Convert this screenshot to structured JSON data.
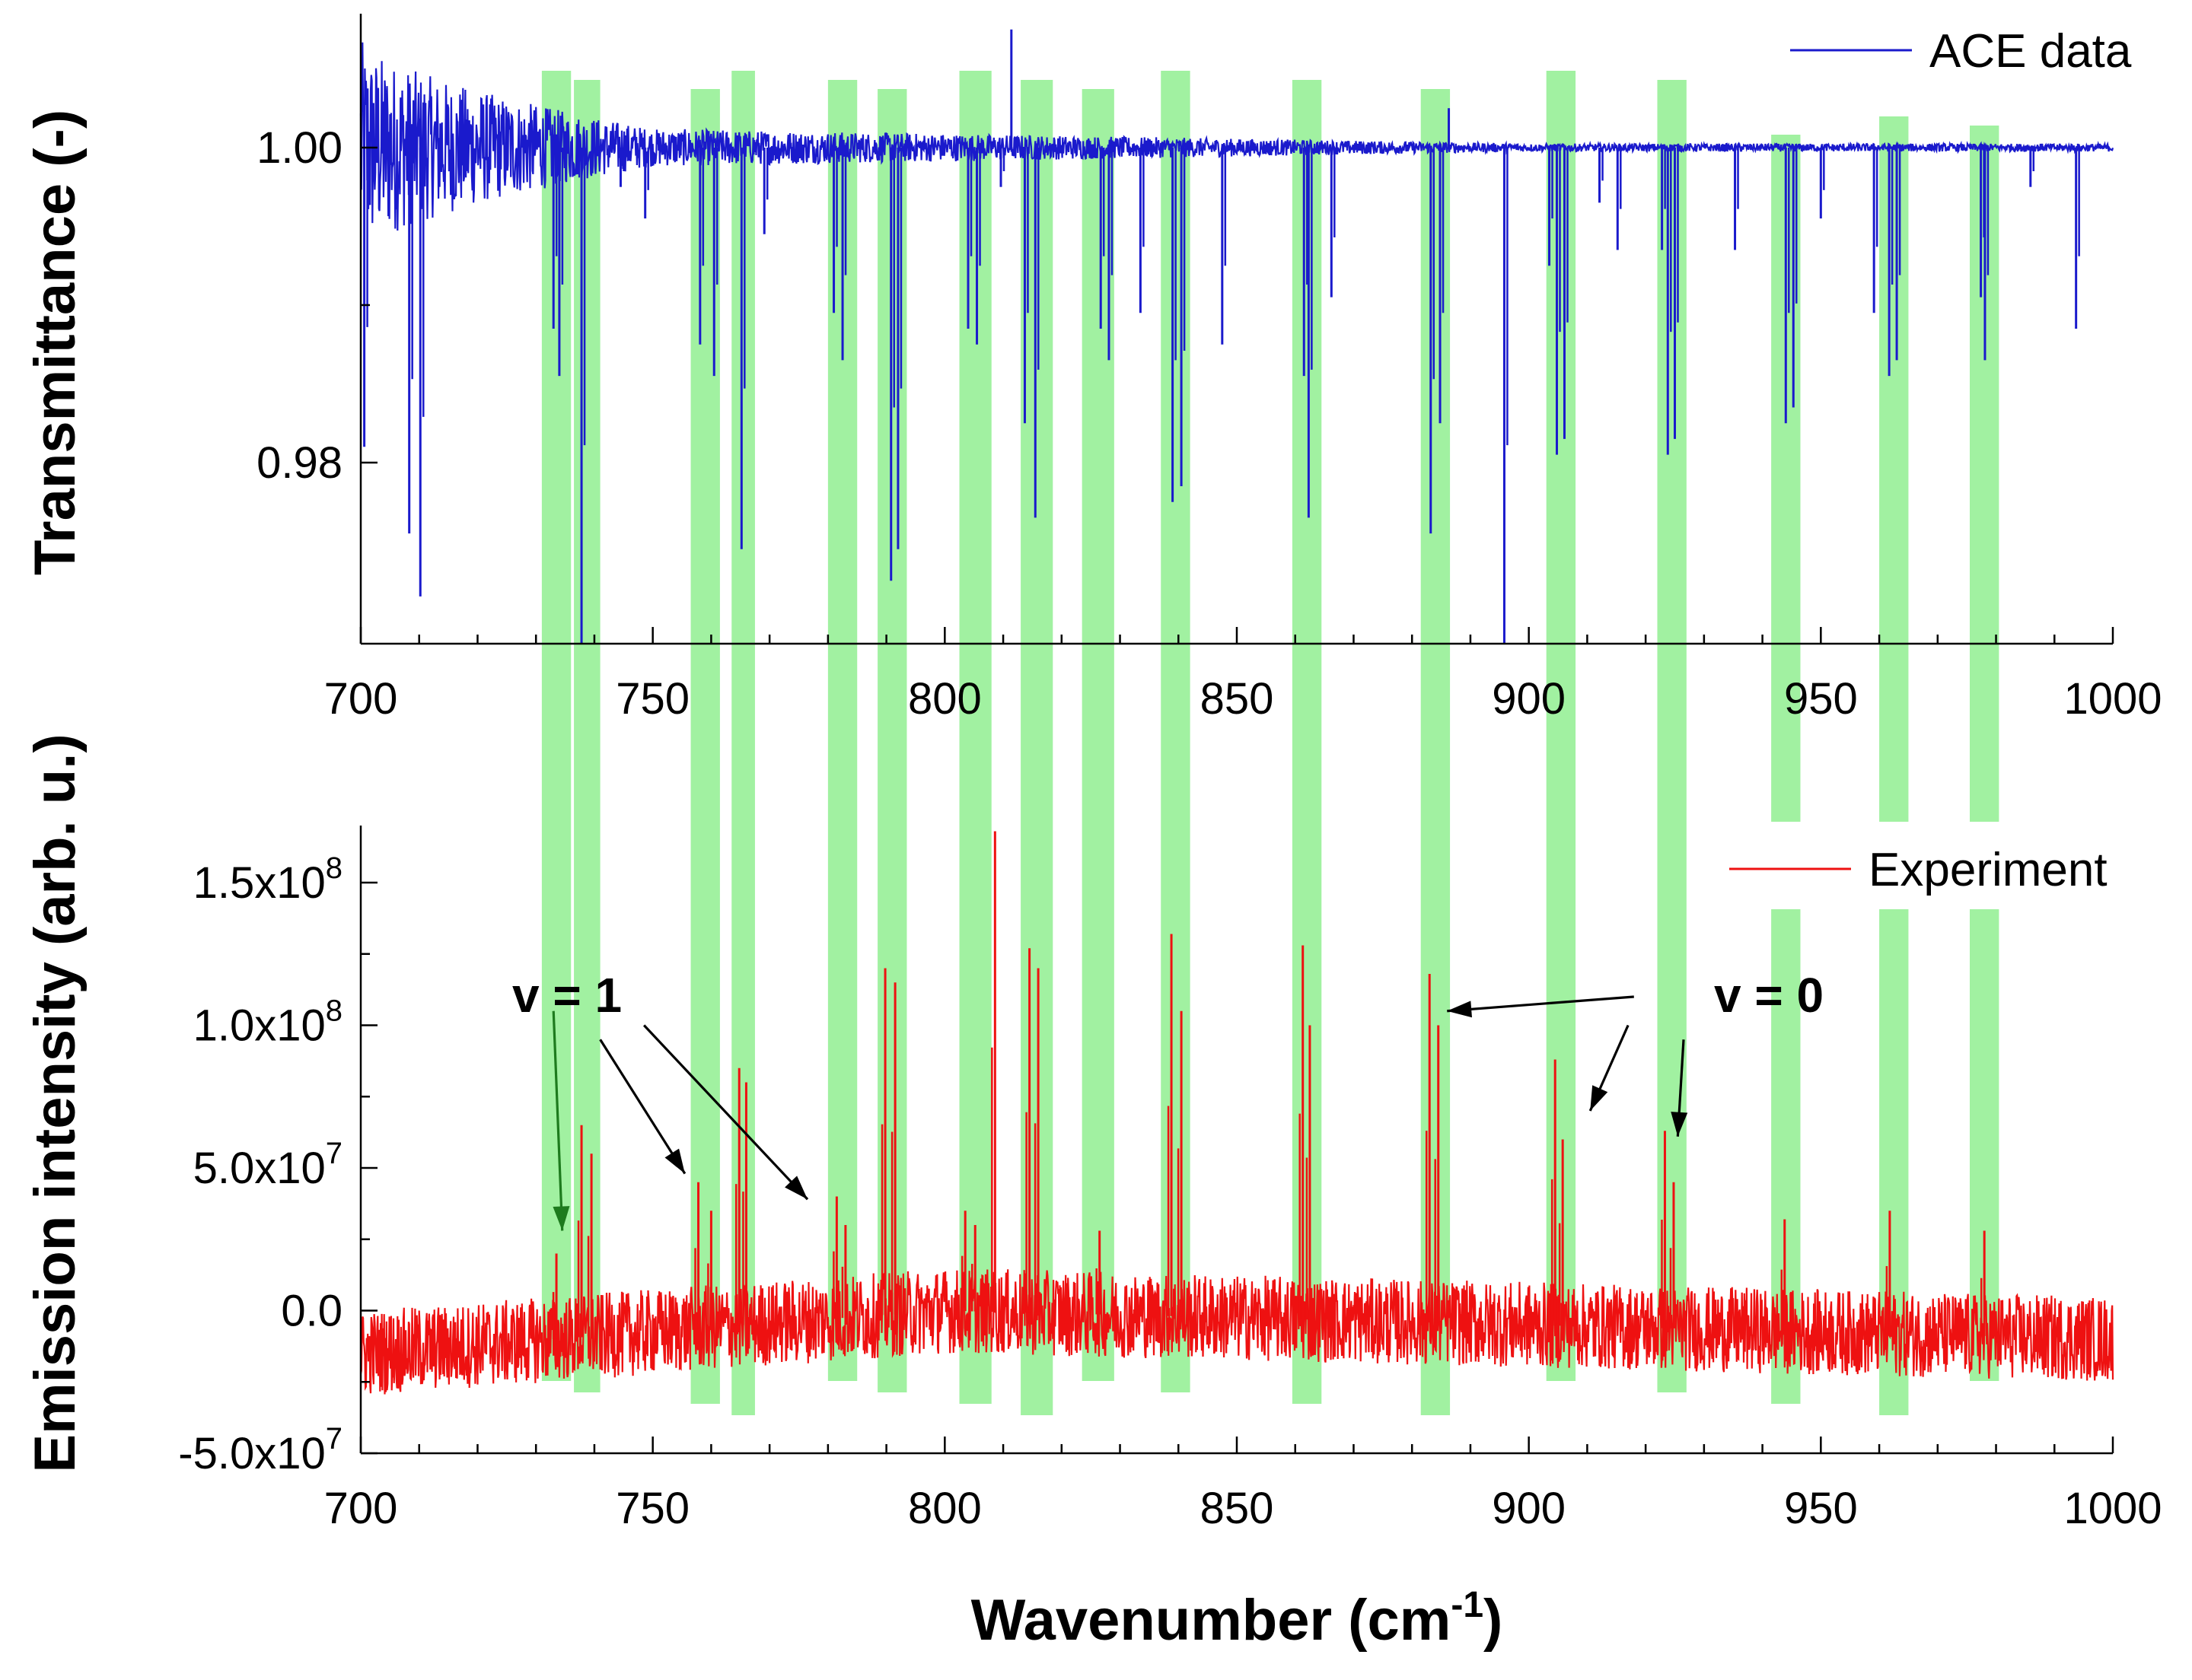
{
  "chart_data": [
    {
      "type": "line",
      "panel": "top",
      "title": "",
      "xlabel": "",
      "ylabel": "Transmittance (-)",
      "xlim": [
        700,
        1000
      ],
      "ylim": [
        0.9685,
        1.0085
      ],
      "x_ticks": [
        "700",
        "750",
        "800",
        "850",
        "900",
        "950",
        "1000"
      ],
      "y_ticks": [
        {
          "value": 0.98,
          "label": "0.98"
        },
        {
          "value": 1.0,
          "label": "1.00"
        }
      ],
      "series": [
        {
          "name": "ACE data",
          "color": "#1a1acc",
          "baseline": 1.0,
          "noise_at_700": 0.007,
          "noise_at_750": 0.0012,
          "noise_at_900": 0.00025,
          "absorption_lines": [
            {
              "x": 700.6,
              "y": 0.981
            },
            {
              "x": 708.3,
              "y": 0.9755
            },
            {
              "x": 710.2,
              "y": 0.9715
            },
            {
              "x": 733.0,
              "y": 0.9885
            },
            {
              "x": 734.0,
              "y": 0.9855
            },
            {
              "x": 737.8,
              "y": 0.9685
            },
            {
              "x": 744.5,
              "y": 0.9975
            },
            {
              "x": 748.7,
              "y": 0.9955
            },
            {
              "x": 758.1,
              "y": 0.9875
            },
            {
              "x": 760.5,
              "y": 0.9855
            },
            {
              "x": 765.2,
              "y": 0.9745
            },
            {
              "x": 769.1,
              "y": 0.9945
            },
            {
              "x": 781.0,
              "y": 0.9895
            },
            {
              "x": 782.5,
              "y": 0.9865
            },
            {
              "x": 790.8,
              "y": 0.9725
            },
            {
              "x": 792.0,
              "y": 0.9745
            },
            {
              "x": 804.0,
              "y": 0.9885
            },
            {
              "x": 805.5,
              "y": 0.9875
            },
            {
              "x": 809.6,
              "y": 0.9975
            },
            {
              "x": 813.7,
              "y": 0.9825
            },
            {
              "x": 815.5,
              "y": 0.9765
            },
            {
              "x": 826.7,
              "y": 0.9885
            },
            {
              "x": 828.1,
              "y": 0.9865
            },
            {
              "x": 833.5,
              "y": 0.9895
            },
            {
              "x": 839.0,
              "y": 0.9775
            },
            {
              "x": 840.5,
              "y": 0.9785
            },
            {
              "x": 847.5,
              "y": 0.9875
            },
            {
              "x": 861.5,
              "y": 0.9855
            },
            {
              "x": 862.3,
              "y": 0.9765
            },
            {
              "x": 866.2,
              "y": 0.9905
            },
            {
              "x": 883.2,
              "y": 0.9755
            },
            {
              "x": 884.8,
              "y": 0.9825
            },
            {
              "x": 895.8,
              "y": 0.9685
            },
            {
              "x": 903.5,
              "y": 0.9925
            },
            {
              "x": 904.8,
              "y": 0.9805
            },
            {
              "x": 906.1,
              "y": 0.9815
            },
            {
              "x": 912.1,
              "y": 0.9965
            },
            {
              "x": 915.2,
              "y": 0.9935
            },
            {
              "x": 922.8,
              "y": 0.9935
            },
            {
              "x": 923.8,
              "y": 0.9805
            },
            {
              "x": 925.0,
              "y": 0.9815
            },
            {
              "x": 935.3,
              "y": 0.9935
            },
            {
              "x": 944.0,
              "y": 0.9825
            },
            {
              "x": 945.3,
              "y": 0.9835
            },
            {
              "x": 950.0,
              "y": 0.9955
            },
            {
              "x": 959.1,
              "y": 0.9895
            },
            {
              "x": 961.7,
              "y": 0.9855
            },
            {
              "x": 963.0,
              "y": 0.9865
            },
            {
              "x": 977.4,
              "y": 0.9905
            },
            {
              "x": 978.1,
              "y": 0.9865
            },
            {
              "x": 985.9,
              "y": 0.9975
            },
            {
              "x": 993.7,
              "y": 0.9885
            }
          ],
          "spikes": [
            {
              "x": 811.4,
              "y": 1.0075
            },
            {
              "x": 886.3,
              "y": 1.0025
            }
          ]
        }
      ],
      "legend": {
        "position": "top-right",
        "entries": [
          "ACE data"
        ]
      }
    },
    {
      "type": "line",
      "panel": "bottom",
      "title": "",
      "xlabel": "Wavenumber (cm",
      "xlabel_superscript": "-1",
      "xlabel_suffix": ")",
      "ylabel": "Emission intensity (arb. u.)",
      "xlim": [
        700,
        1000
      ],
      "ylim": [
        -50000000,
        170000000
      ],
      "x_ticks": [
        "700",
        "750",
        "800",
        "850",
        "900",
        "950",
        "1000"
      ],
      "y_ticks": [
        {
          "value": -50000000,
          "label": "-5.0x10",
          "exp": "7"
        },
        {
          "value": 0,
          "label": "0.0",
          "exp": ""
        },
        {
          "value": 50000000,
          "label": "5.0x10",
          "exp": "7"
        },
        {
          "value": 100000000,
          "label": "1.0x10",
          "exp": "8"
        },
        {
          "value": 150000000,
          "label": "1.5x10",
          "exp": "8"
        }
      ],
      "series": [
        {
          "name": "Experiment",
          "color": "#ee1111",
          "baseline_at_700": -15000000,
          "baseline_at_800": 0,
          "baseline_at_1000": -10000000,
          "noise_amplitude": 15000000,
          "emission_lines": [
            {
              "x": 733.5,
              "y": 20000000
            },
            {
              "x": 737.8,
              "y": 65000000
            },
            {
              "x": 739.5,
              "y": 55000000
            },
            {
              "x": 757.8,
              "y": 45000000
            },
            {
              "x": 760.0,
              "y": 35000000
            },
            {
              "x": 764.8,
              "y": 85000000
            },
            {
              "x": 766.0,
              "y": 80000000
            },
            {
              "x": 781.5,
              "y": 40000000
            },
            {
              "x": 783.0,
              "y": 30000000
            },
            {
              "x": 789.8,
              "y": 120000000
            },
            {
              "x": 791.5,
              "y": 115000000
            },
            {
              "x": 803.5,
              "y": 35000000
            },
            {
              "x": 805.2,
              "y": 30000000
            },
            {
              "x": 808.6,
              "y": 168000000
            },
            {
              "x": 814.5,
              "y": 127000000
            },
            {
              "x": 816.0,
              "y": 120000000
            },
            {
              "x": 826.5,
              "y": 28000000
            },
            {
              "x": 838.8,
              "y": 132000000
            },
            {
              "x": 840.5,
              "y": 105000000
            },
            {
              "x": 861.3,
              "y": 128000000
            },
            {
              "x": 862.5,
              "y": 100000000
            },
            {
              "x": 883.0,
              "y": 118000000
            },
            {
              "x": 884.5,
              "y": 100000000
            },
            {
              "x": 904.5,
              "y": 88000000
            },
            {
              "x": 905.8,
              "y": 60000000
            },
            {
              "x": 923.3,
              "y": 63000000
            },
            {
              "x": 924.8,
              "y": 45000000
            },
            {
              "x": 943.8,
              "y": 32000000
            },
            {
              "x": 961.8,
              "y": 35000000
            },
            {
              "x": 978.0,
              "y": 28000000
            }
          ]
        }
      ],
      "legend": {
        "position": "top-right",
        "entries": [
          "Experiment"
        ]
      }
    }
  ],
  "highlight_bands": {
    "color": "#90ee90",
    "bands": [
      [
        731.0,
        736.0
      ],
      [
        736.5,
        741.0
      ],
      [
        756.5,
        761.5
      ],
      [
        763.5,
        767.5
      ],
      [
        780.0,
        785.0
      ],
      [
        788.5,
        793.5
      ],
      [
        802.5,
        808.0
      ],
      [
        813.0,
        818.5
      ],
      [
        823.5,
        829.0
      ],
      [
        837.0,
        842.0
      ],
      [
        859.5,
        864.5
      ],
      [
        881.5,
        886.5
      ],
      [
        903.0,
        908.0
      ],
      [
        922.0,
        927.0
      ],
      [
        941.5,
        946.5
      ],
      [
        960.0,
        965.0
      ],
      [
        975.5,
        980.5
      ]
    ],
    "gaps": [
      [
        941.5,
        946.5
      ],
      [
        960.0,
        965.0
      ],
      [
        975.5,
        980.5
      ]
    ]
  },
  "annotations": [
    {
      "label": "v = 1",
      "arrows": [
        {
          "from": [
            733.0,
            105000000
          ],
          "to": [
            734.5,
            28000000
          ],
          "color": "#1e7b1e"
        },
        {
          "from": [
            741.0,
            95000000
          ],
          "to": [
            755.5,
            48000000
          ],
          "color": "#000000"
        },
        {
          "from": [
            748.5,
            100000000
          ],
          "to": [
            776.5,
            39000000
          ],
          "color": "#000000"
        }
      ]
    },
    {
      "label": "v = 0",
      "arrows": [
        {
          "from": [
            918.0,
            110000000
          ],
          "to": [
            886.0,
            105000000
          ],
          "color": "#000000"
        },
        {
          "from": [
            917.0,
            100000000
          ],
          "to": [
            910.5,
            70000000
          ],
          "color": "#000000"
        },
        {
          "from": [
            926.5,
            95000000
          ],
          "to": [
            925.5,
            61000000
          ],
          "color": "#000000"
        }
      ]
    }
  ]
}
